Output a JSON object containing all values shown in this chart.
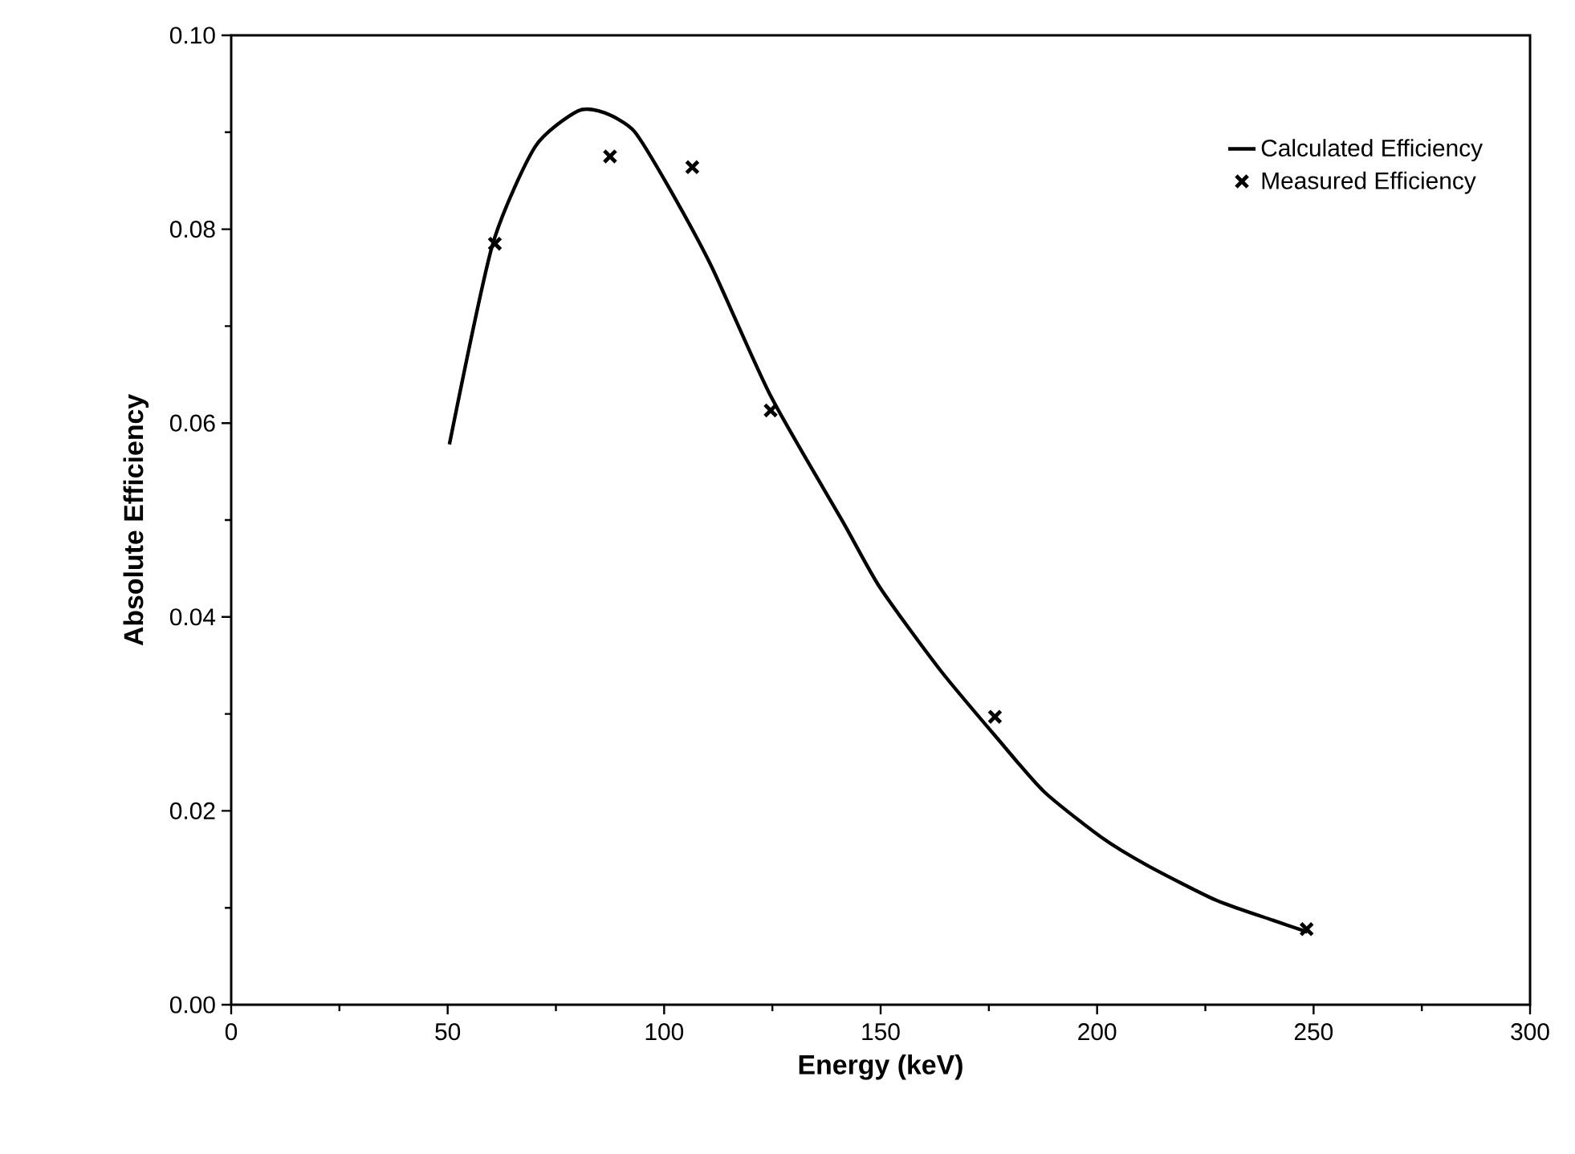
{
  "chart_data": {
    "type": "line",
    "xlabel": "Energy (keV)",
    "ylabel": "Absolute Efficiency",
    "xlim": [
      0,
      300
    ],
    "ylim": [
      0,
      0.1
    ],
    "xticks": [
      0,
      50,
      100,
      150,
      200,
      250,
      300
    ],
    "yticks": [
      {
        "value": 0,
        "label": "0.00"
      },
      {
        "value": 0.02,
        "label": "0.02"
      },
      {
        "value": 0.04,
        "label": "0.04"
      },
      {
        "value": 0.06,
        "label": "0.06"
      },
      {
        "value": 0.08,
        "label": "0.08"
      },
      {
        "value": 0.1,
        "label": "0.10"
      }
    ],
    "legend": "top right",
    "grid": false,
    "series": [
      {
        "name": "Calculated Efficiency",
        "color": "#000000",
        "marker": "none",
        "line_style": "solid",
        "x": [
          50.4,
          60.3,
          70.2,
          80.1,
          86.3,
          93.1,
          101.1,
          111,
          124.6,
          141.3,
          149.9,
          163.8,
          177.1,
          187.7,
          200.9,
          211.5,
          227.4,
          240.7,
          248.6
        ],
        "values": [
          0.0578,
          0.0783,
          0.0885,
          0.0922,
          0.092,
          0.0901,
          0.0843,
          0.0761,
          0.0628,
          0.0498,
          0.043,
          0.0345,
          0.0274,
          0.022,
          0.0173,
          0.0144,
          0.0108,
          0.0087,
          0.0075
        ]
      },
      {
        "name": "Measured Efficiency",
        "type": "scatter",
        "color": "#000000",
        "marker": "cross",
        "x": [
          60.9,
          87.5,
          106.5,
          124.6,
          176.4,
          248.4
        ],
        "values": [
          0.0785,
          0.0875,
          0.0864,
          0.0613,
          0.0297,
          0.0078
        ]
      }
    ]
  }
}
